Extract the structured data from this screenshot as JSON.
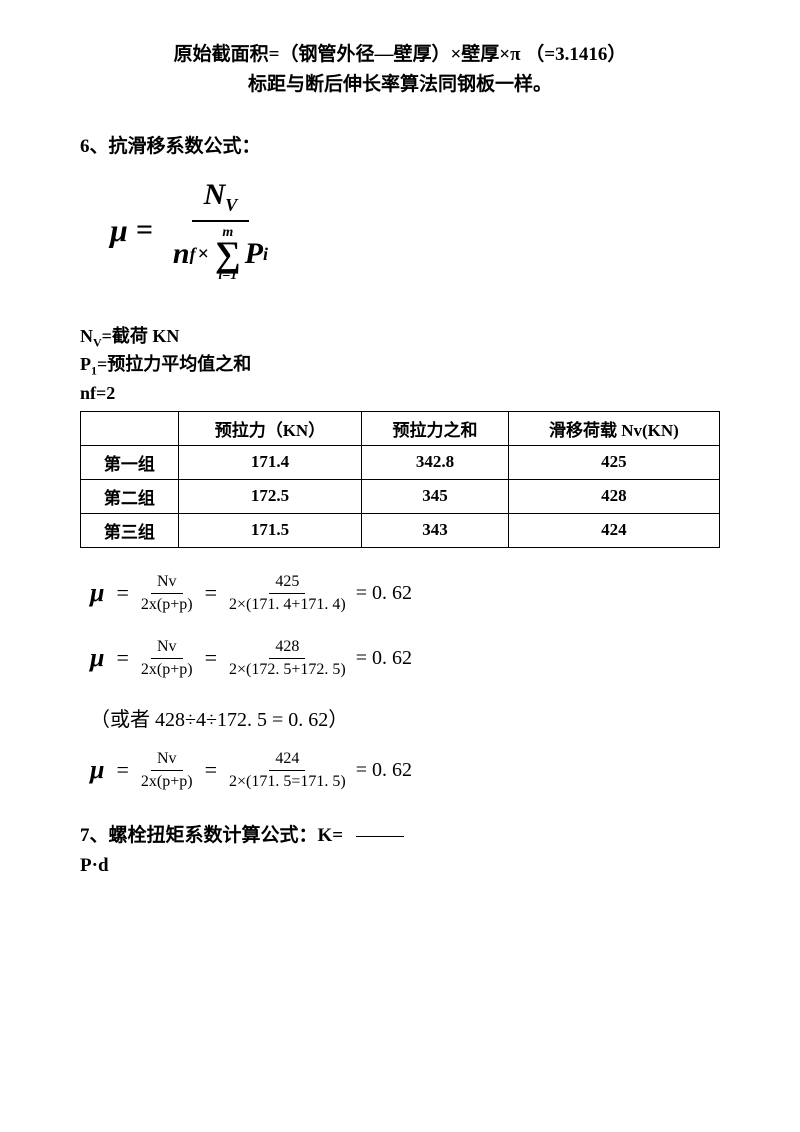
{
  "header": {
    "line1_pre": "原始截面积=（钢管外径—壁厚）×壁厚×",
    "pi": "π",
    "line1_post": " （=3.1416）",
    "line2": "标距与断后伸长率算法同钢板一样。"
  },
  "section6": {
    "title": "6、抗滑移系数公式：",
    "formula": {
      "mu": "μ",
      "equals": "=",
      "numerator_N": "N",
      "numerator_sub": "V",
      "den_n": "n",
      "den_n_sub": "f",
      "den_times": "×",
      "sigma_top": "m",
      "sigma_sym": "∑",
      "sigma_bot": "i=1",
      "den_P": "P",
      "den_P_sub": "i"
    },
    "defs": {
      "nv": "N",
      "nv_sub": "V",
      "nv_text": "=截荷  KN",
      "p1": "P",
      "p1_sub": "1",
      "p1_text": "=预拉力平均值之和",
      "nf": "nf=2"
    },
    "table": {
      "headers": [
        "",
        "预拉力（KN）",
        "预拉力之和",
        "滑移荷载 Nv(KN)"
      ],
      "rows": [
        [
          "第一组",
          "171.4",
          "342.8",
          "425"
        ],
        [
          "第二组",
          "172.5",
          "345",
          "428"
        ],
        [
          "第三组",
          "171.5",
          "343",
          "424"
        ]
      ]
    },
    "calcs": [
      {
        "num1": "Nv",
        "den1": "2x(p+p)",
        "num2": "425",
        "den2": "2×(171. 4+171. 4)",
        "result": "= 0. 62"
      },
      {
        "num1": "Nv",
        "den1": "2x(p+p)",
        "num2": "428",
        "den2": "2×(172. 5+172. 5)",
        "result": "= 0. 62"
      },
      {
        "num1": "Nv",
        "den1": "2x(p+p)",
        "num2": "424",
        "den2": "2×(171. 5=171. 5)",
        "result": "= 0. 62"
      }
    ],
    "alt": "（或者 428÷4÷172. 5 = 0. 62）"
  },
  "section7": {
    "title": "7、螺栓扭矩系数计算公式：K=  ",
    "line2": "P·d"
  }
}
